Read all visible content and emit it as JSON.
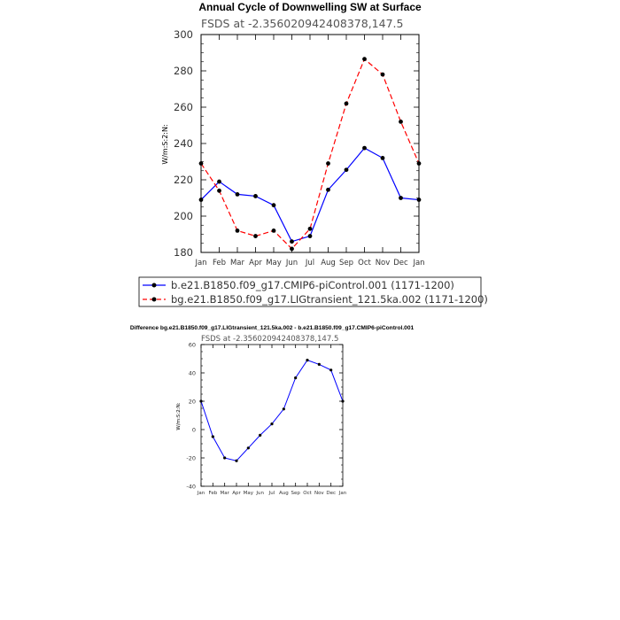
{
  "chart_data": [
    {
      "type": "line",
      "title": "Annual Cycle of Downwelling SW at Surface",
      "subtitle": "FSDS at -2.356020942408378,147.5",
      "ylabel": "W/m:S:2:N:",
      "xlabel": "",
      "ylim": [
        180,
        300
      ],
      "yticks": [
        180,
        200,
        220,
        240,
        260,
        280,
        300
      ],
      "categories": [
        "Jan",
        "Feb",
        "Mar",
        "Apr",
        "May",
        "Jun",
        "Jul",
        "Aug",
        "Sep",
        "Oct",
        "Nov",
        "Dec",
        "Jan"
      ],
      "grid": false,
      "legend_position": "bottom",
      "series": [
        {
          "name": "b.e21.B1850.f09_g17.CMIP6-piControl.001 (1171-1200)",
          "color": "#0000ff",
          "dash": "solid",
          "values": [
            209,
            219,
            212,
            211,
            206,
            186,
            189,
            214.5,
            225.5,
            237.5,
            232,
            210,
            209
          ]
        },
        {
          "name": "bg.e21.B1850.f09_g17.LIGtransient_121.5ka.002 (1171-1200)",
          "color": "#ff0000",
          "dash": "dashed",
          "values": [
            229,
            214,
            192,
            189,
            192,
            182,
            193,
            229,
            262,
            286.5,
            278,
            252,
            229
          ]
        }
      ]
    },
    {
      "type": "line",
      "title": "Difference bg.e21.B1850.f09_g17.LIGtransient_121.5ka.002 - b.e21.B1850.f09_g17.CMIP6-piControl.001",
      "subtitle": "FSDS at -2.356020942408378,147.5",
      "ylabel": "W/m:S:2:N:",
      "xlabel": "",
      "ylim": [
        -40,
        60
      ],
      "yticks": [
        -40,
        -20,
        0,
        20,
        40,
        60
      ],
      "categories": [
        "Jan",
        "Feb",
        "Mar",
        "Apr",
        "May",
        "Jun",
        "Jul",
        "Aug",
        "Sep",
        "Oct",
        "Nov",
        "Dec",
        "Jan"
      ],
      "grid": false,
      "series": [
        {
          "color": "#0000ff",
          "dash": "solid",
          "values": [
            20,
            -5,
            -20,
            -22,
            -13,
            -4,
            4,
            14.5,
            36.5,
            49,
            46,
            42,
            20
          ]
        }
      ]
    }
  ]
}
